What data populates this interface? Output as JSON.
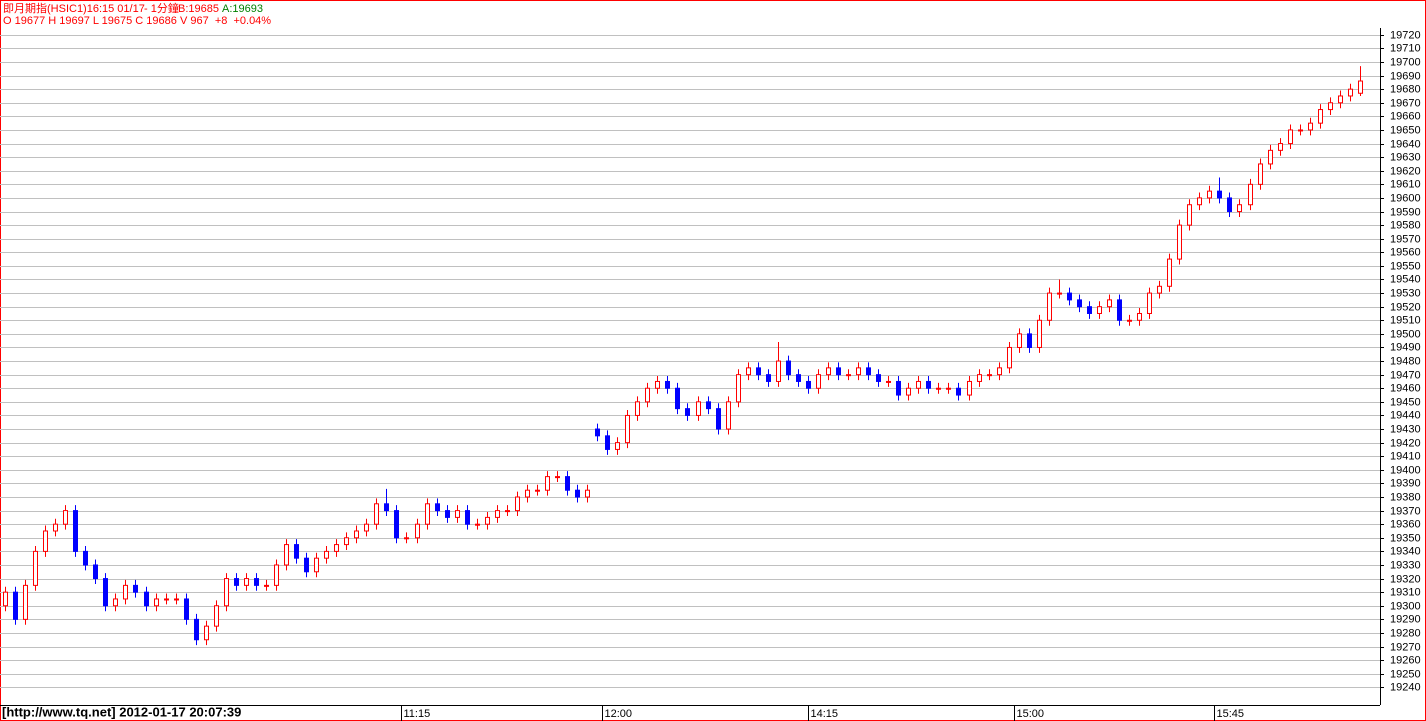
{
  "chart_data": {
    "type": "candlestick",
    "title": "即月期指(HSIC1)16:15 01/17",
    "interval": "- 1分鐘",
    "bid": "B:19685",
    "ask": "A:19693",
    "quote_line": "O 19677 H 19697 L 19675 C 19686 V 967  +8  +0.04%",
    "footer": "[http://www.tq.net] 2012-01-17 20:07:39",
    "up_color": "#ff0000",
    "down_color": "#0000ff",
    "grid": true,
    "xlim": [
      -1,
      274
    ],
    "xticks": [
      {
        "value": 79,
        "label": "11:15"
      },
      {
        "value": 119,
        "label": "12:00"
      },
      {
        "value": 160,
        "label": "14:15"
      },
      {
        "value": 201,
        "label": "15:00"
      },
      {
        "value": 241,
        "label": "15:45"
      }
    ],
    "ylim": [
      19227,
      19725
    ],
    "yticks": [
      19240,
      19250,
      19260,
      19270,
      19280,
      19290,
      19300,
      19310,
      19320,
      19330,
      19340,
      19350,
      19360,
      19370,
      19380,
      19390,
      19400,
      19410,
      19420,
      19430,
      19440,
      19450,
      19460,
      19470,
      19480,
      19490,
      19500,
      19510,
      19520,
      19530,
      19540,
      19550,
      19560,
      19570,
      19580,
      19590,
      19600,
      19610,
      19620,
      19630,
      19640,
      19650,
      19660,
      19670,
      19680,
      19690,
      19700,
      19710,
      19720
    ],
    "x": [
      0,
      2,
      4,
      6,
      8,
      10,
      12,
      14,
      16,
      18,
      20,
      22,
      24,
      26,
      28,
      30,
      32,
      34,
      36,
      38,
      40,
      42,
      44,
      46,
      48,
      50,
      52,
      54,
      56,
      58,
      60,
      62,
      64,
      66,
      68,
      70,
      72,
      74,
      76,
      78,
      80,
      82,
      84,
      86,
      88,
      90,
      92,
      94,
      96,
      98,
      100,
      102,
      104,
      106,
      108,
      110,
      112,
      114,
      116,
      118,
      120,
      122,
      124,
      126,
      128,
      130,
      132,
      134,
      136,
      138,
      140,
      142,
      144,
      146,
      148,
      150,
      152,
      154,
      156,
      158,
      160,
      162,
      164,
      166,
      168,
      170,
      172,
      174,
      176,
      178,
      180,
      182,
      184,
      186,
      188,
      190,
      192,
      194,
      196,
      198,
      200,
      202,
      204,
      206,
      208,
      210,
      212,
      214,
      216,
      218,
      220,
      222,
      224,
      226,
      228,
      230,
      232,
      234,
      236,
      238,
      240,
      242,
      244,
      246,
      248,
      250,
      252,
      254,
      256,
      258,
      260,
      262,
      264,
      266,
      268,
      270
    ],
    "open": [
      19300,
      19310,
      19290,
      19315,
      19340,
      19355,
      19360,
      19370,
      19340,
      19330,
      19320,
      19300,
      19305,
      19315,
      19310,
      19300,
      19305,
      19305,
      19305,
      19290,
      19275,
      19285,
      19300,
      19320,
      19315,
      19320,
      19315,
      19315,
      19330,
      19345,
      19335,
      19325,
      19335,
      19340,
      19345,
      19350,
      19355,
      19360,
      19375,
      19370,
      19350,
      19350,
      19360,
      19375,
      19370,
      19365,
      19370,
      19360,
      19360,
      19365,
      19370,
      19370,
      19380,
      19385,
      19385,
      19395,
      19395,
      19385,
      19380,
      19430,
      19425,
      19415,
      19420,
      19440,
      19450,
      19460,
      19465,
      19460,
      19445,
      19440,
      19450,
      19445,
      19430,
      19450,
      19470,
      19475,
      19470,
      19465,
      19480,
      19470,
      19465,
      19460,
      19470,
      19475,
      19470,
      19470,
      19475,
      19470,
      19465,
      19465,
      19455,
      19460,
      19465,
      19460,
      19460,
      19460,
      19455,
      19465,
      19470,
      19470,
      19475,
      19490,
      19500,
      19490,
      19510,
      19530,
      19530,
      19525,
      19520,
      19515,
      19520,
      19525,
      19510,
      19510,
      19515,
      19530,
      19535,
      19555,
      19580,
      19595,
      19600,
      19605,
      19600,
      19590,
      19595,
      19610,
      19625,
      19635,
      19640,
      19650,
      19650,
      19655,
      19665,
      19670,
      19675,
      19677
    ],
    "high": [
      19314,
      19314,
      19319,
      19344,
      19359,
      19364,
      19374,
      19374,
      19344,
      19334,
      19324,
      19309,
      19319,
      19319,
      19314,
      19309,
      19309,
      19309,
      19309,
      19294,
      19289,
      19304,
      19324,
      19324,
      19324,
      19324,
      19319,
      19334,
      19349,
      19349,
      19339,
      19339,
      19344,
      19349,
      19354,
      19359,
      19364,
      19379,
      19386,
      19374,
      19354,
      19364,
      19379,
      19379,
      19374,
      19374,
      19374,
      19364,
      19369,
      19374,
      19374,
      19384,
      19389,
      19389,
      19399,
      19399,
      19399,
      19389,
      19389,
      19434,
      19429,
      19424,
      19444,
      19454,
      19464,
      19469,
      19469,
      19464,
      19449,
      19454,
      19454,
      19449,
      19454,
      19474,
      19479,
      19479,
      19474,
      19494,
      19484,
      19474,
      19469,
      19474,
      19479,
      19479,
      19474,
      19479,
      19479,
      19474,
      19469,
      19469,
      19464,
      19469,
      19469,
      19464,
      19464,
      19464,
      19469,
      19474,
      19474,
      19479,
      19494,
      19504,
      19504,
      19514,
      19534,
      19540,
      19534,
      19529,
      19524,
      19524,
      19529,
      19529,
      19514,
      19519,
      19534,
      19539,
      19559,
      19584,
      19599,
      19604,
      19609,
      19615,
      19604,
      19599,
      19614,
      19629,
      19639,
      19644,
      19654,
      19654,
      19659,
      19669,
      19674,
      19679,
      19684,
      19697
    ],
    "low": [
      19296,
      19286,
      19286,
      19311,
      19336,
      19351,
      19356,
      19336,
      19326,
      19316,
      19296,
      19296,
      19301,
      19306,
      19296,
      19296,
      19301,
      19301,
      19286,
      19271,
      19271,
      19281,
      19296,
      19311,
      19311,
      19311,
      19311,
      19311,
      19326,
      19331,
      19321,
      19321,
      19331,
      19336,
      19341,
      19346,
      19351,
      19356,
      19366,
      19346,
      19346,
      19346,
      19356,
      19366,
      19361,
      19361,
      19356,
      19356,
      19356,
      19361,
      19366,
      19366,
      19376,
      19381,
      19381,
      19391,
      19381,
      19376,
      19376,
      19421,
      19411,
      19411,
      19416,
      19436,
      19446,
      19456,
      19456,
      19441,
      19436,
      19436,
      19441,
      19426,
      19426,
      19446,
      19466,
      19466,
      19461,
      19461,
      19466,
      19461,
      19456,
      19456,
      19466,
      19466,
      19466,
      19466,
      19466,
      19461,
      19461,
      19451,
      19451,
      19456,
      19456,
      19456,
      19456,
      19451,
      19451,
      19461,
      19466,
      19466,
      19471,
      19486,
      19486,
      19486,
      19506,
      19526,
      19521,
      19516,
      19511,
      19511,
      19516,
      19506,
      19506,
      19506,
      19511,
      19526,
      19531,
      19551,
      19576,
      19591,
      19596,
      19596,
      19586,
      19586,
      19591,
      19606,
      19621,
      19631,
      19636,
      19646,
      19646,
      19651,
      19661,
      19666,
      19671,
      19675
    ],
    "close": [
      19310,
      19290,
      19315,
      19340,
      19355,
      19360,
      19370,
      19340,
      19330,
      19320,
      19300,
      19305,
      19315,
      19310,
      19300,
      19305,
      19305,
      19305,
      19290,
      19275,
      19285,
      19300,
      19320,
      19315,
      19320,
      19315,
      19315,
      19330,
      19345,
      19335,
      19325,
      19335,
      19340,
      19345,
      19350,
      19355,
      19360,
      19375,
      19370,
      19350,
      19350,
      19360,
      19375,
      19370,
      19365,
      19370,
      19360,
      19360,
      19365,
      19370,
      19370,
      19380,
      19385,
      19385,
      19395,
      19395,
      19385,
      19380,
      19385,
      19425,
      19415,
      19420,
      19440,
      19450,
      19460,
      19465,
      19460,
      19445,
      19440,
      19450,
      19445,
      19430,
      19450,
      19470,
      19475,
      19470,
      19465,
      19480,
      19470,
      19465,
      19460,
      19470,
      19475,
      19470,
      19470,
      19475,
      19470,
      19465,
      19465,
      19455,
      19460,
      19465,
      19460,
      19460,
      19460,
      19455,
      19465,
      19470,
      19470,
      19475,
      19490,
      19500,
      19490,
      19510,
      19530,
      19530,
      19525,
      19520,
      19515,
      19520,
      19525,
      19510,
      19510,
      19515,
      19530,
      19535,
      19555,
      19580,
      19595,
      19600,
      19605,
      19600,
      19590,
      19595,
      19610,
      19625,
      19635,
      19640,
      19650,
      19650,
      19655,
      19665,
      19670,
      19675,
      19680,
      19686
    ]
  }
}
